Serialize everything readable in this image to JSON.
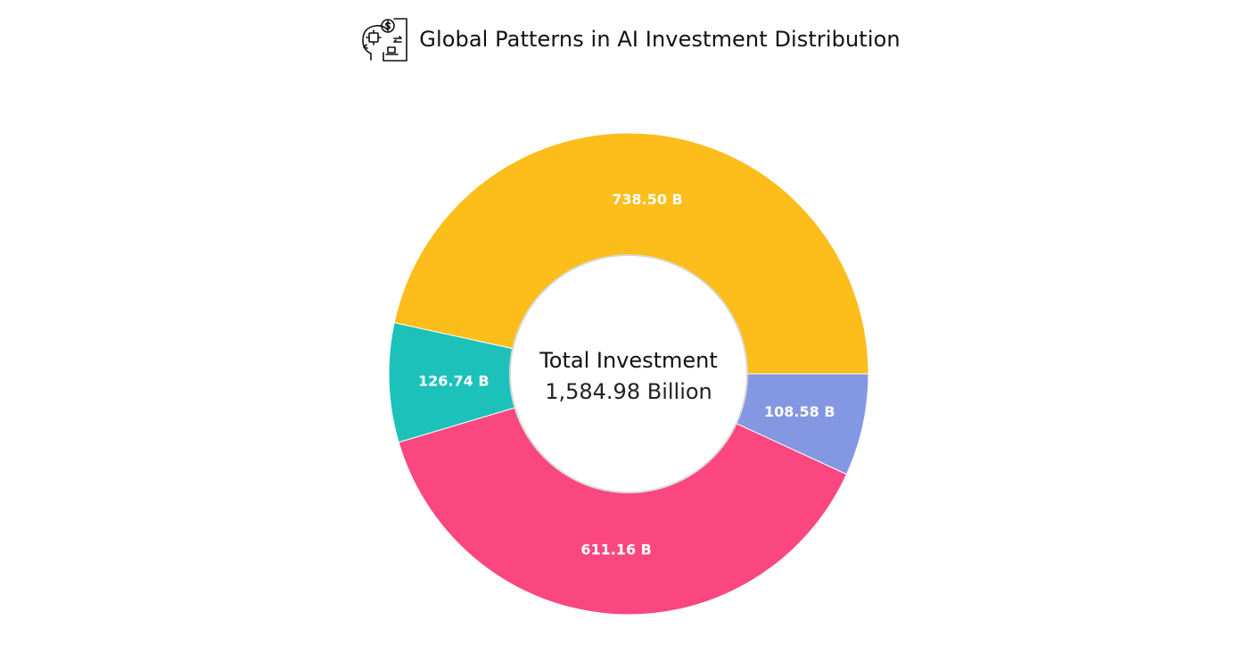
{
  "header": {
    "icon": "ai-investment-icon",
    "title": "Global Patterns in AI Investment Distribution"
  },
  "chart_data": {
    "type": "pie",
    "variant": "donut",
    "title": "Global Patterns in AI Investment Distribution",
    "values": [
      108.58,
      611.16,
      126.74,
      738.5
    ],
    "labels": [
      "108.58 B",
      "611.16 B",
      "126.74 B",
      "738.50 B"
    ],
    "colors": [
      "#8497E3",
      "#FB4780",
      "#1CC1BA",
      "#FDBD1A"
    ],
    "center": {
      "title": "Total Investment",
      "value": "1,584.98 Billion"
    },
    "legend": "none"
  }
}
